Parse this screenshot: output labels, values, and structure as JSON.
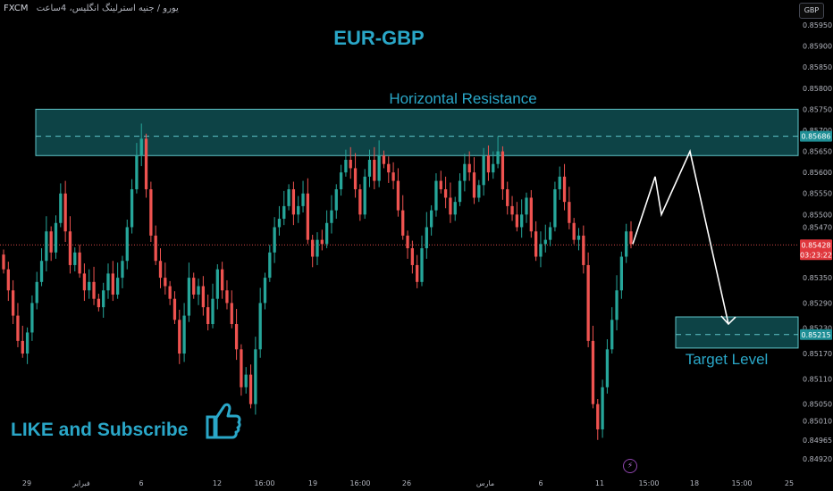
{
  "header": {
    "symbol": "FXCM",
    "description": "یورو / جنیه استرلینگ انگلیس، 4ساعت",
    "currency_button": "GBP"
  },
  "annotations": {
    "title": "EUR-GBP",
    "resistance_label": "Horizontal Resistance",
    "target_label": "Target Level",
    "like_text": "LIKE and Subscribe"
  },
  "colors": {
    "background": "#000000",
    "bull": "#26a69a",
    "bear": "#ef5350",
    "accent_text": "#2aa7c8",
    "zone_fill": "#0f4f52",
    "zone_border": "#5fc4c8",
    "axis_text": "#b2b5be"
  },
  "price_tags": {
    "resistance": "0.85686",
    "current_price": "0.85428",
    "countdown": "03:23:22",
    "target": "0.85215"
  },
  "chart_data": {
    "type": "candlestick",
    "title": "EUR-GBP",
    "y_ticks": [
      0.8492,
      0.84965,
      0.8501,
      0.8505,
      0.8511,
      0.8517,
      0.8523,
      0.8529,
      0.8535,
      0.8541,
      0.8547,
      0.855,
      0.8555,
      0.856,
      0.8565,
      0.857,
      0.8575,
      0.858,
      0.8585,
      0.859,
      0.8595
    ],
    "y_tick_labels": [
      "0.84920",
      "0.84965",
      "0.85010",
      "0.85050",
      "0.85110",
      "0.85170",
      "0.85230",
      "0.85290",
      "0.85350",
      "0.85410",
      "0.85470",
      "0.85500",
      "0.85550",
      "0.85600",
      "0.85650",
      "0.85700",
      "0.85750",
      "0.85800",
      "0.85850",
      "0.85900",
      "0.85950"
    ],
    "x_tick_labels": [
      "29",
      "فبراير",
      "6",
      "12",
      "16:00",
      "19",
      "16:00",
      "26",
      "مارس",
      "6",
      "11",
      "15:00",
      "18",
      "15:00",
      "25"
    ],
    "resistance_zone": [
      0.8564,
      0.8575
    ],
    "resistance_line": 0.85686,
    "target_zone": [
      0.852,
      0.8524
    ],
    "target_line": 0.85215,
    "current_price": 0.85428,
    "projection": [
      0.8543,
      0.8559,
      0.855,
      0.8565,
      0.8524
    ],
    "closes": [
      0.8537,
      0.8532,
      0.8526,
      0.852,
      0.8517,
      0.8522,
      0.8529,
      0.8534,
      0.8539,
      0.8546,
      0.8541,
      0.8548,
      0.8555,
      0.8546,
      0.8538,
      0.8541,
      0.8536,
      0.8532,
      0.8534,
      0.853,
      0.8528,
      0.8532,
      0.8536,
      0.8531,
      0.8535,
      0.8539,
      0.8547,
      0.8556,
      0.8564,
      0.8568,
      0.8556,
      0.8545,
      0.8539,
      0.8535,
      0.8533,
      0.853,
      0.8525,
      0.8517,
      0.8526,
      0.8535,
      0.8531,
      0.8533,
      0.8528,
      0.8524,
      0.853,
      0.8537,
      0.8532,
      0.8529,
      0.8524,
      0.8518,
      0.8509,
      0.8512,
      0.8505,
      0.8518,
      0.8529,
      0.8535,
      0.8541,
      0.8547,
      0.8549,
      0.8552,
      0.8556,
      0.855,
      0.8552,
      0.8555,
      0.8544,
      0.854,
      0.8544,
      0.8543,
      0.8548,
      0.8551,
      0.8556,
      0.856,
      0.8563,
      0.8561,
      0.8556,
      0.855,
      0.8559,
      0.8563,
      0.8558,
      0.8564,
      0.8562,
      0.856,
      0.8558,
      0.8551,
      0.8545,
      0.8542,
      0.8538,
      0.8534,
      0.8542,
      0.8547,
      0.8551,
      0.8558,
      0.8556,
      0.8554,
      0.855,
      0.8553,
      0.8558,
      0.8562,
      0.856,
      0.8554,
      0.8557,
      0.8564,
      0.856,
      0.8562,
      0.8565,
      0.8556,
      0.8552,
      0.855,
      0.8547,
      0.855,
      0.8554,
      0.8546,
      0.854,
      0.8543,
      0.8544,
      0.8547,
      0.8556,
      0.8559,
      0.8553,
      0.8548,
      0.8544,
      0.8545,
      0.8538,
      0.852,
      0.8505,
      0.8499,
      0.8509,
      0.8518,
      0.8525,
      0.8532,
      0.854,
      0.8546,
      0.8543
    ]
  }
}
